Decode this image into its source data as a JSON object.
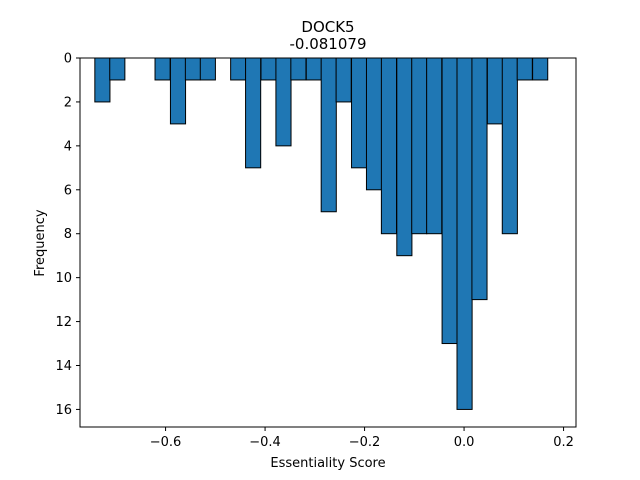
{
  "chart_data": {
    "type": "bar",
    "title": "DOCK5",
    "subtitle": "-0.081079",
    "xlabel": "Essentiality Score",
    "ylabel": "Frequency",
    "y_inverted": true,
    "xlim": [
      -0.772,
      0.225
    ],
    "ylim": [
      0,
      16.8
    ],
    "bin_width": 0.0304,
    "bins": [
      {
        "x": -0.727,
        "count": 2
      },
      {
        "x": -0.697,
        "count": 1
      },
      {
        "x": -0.606,
        "count": 1
      },
      {
        "x": -0.575,
        "count": 3
      },
      {
        "x": -0.545,
        "count": 1
      },
      {
        "x": -0.515,
        "count": 1
      },
      {
        "x": -0.454,
        "count": 1
      },
      {
        "x": -0.424,
        "count": 5
      },
      {
        "x": -0.393,
        "count": 1
      },
      {
        "x": -0.363,
        "count": 4
      },
      {
        "x": -0.333,
        "count": 1
      },
      {
        "x": -0.302,
        "count": 1
      },
      {
        "x": -0.272,
        "count": 7
      },
      {
        "x": -0.242,
        "count": 2
      },
      {
        "x": -0.211,
        "count": 5
      },
      {
        "x": -0.181,
        "count": 6
      },
      {
        "x": -0.151,
        "count": 8
      },
      {
        "x": -0.12,
        "count": 9
      },
      {
        "x": -0.09,
        "count": 8
      },
      {
        "x": -0.06,
        "count": 8
      },
      {
        "x": -0.029,
        "count": 13
      },
      {
        "x": 0.001,
        "count": 16
      },
      {
        "x": 0.031,
        "count": 11
      },
      {
        "x": 0.062,
        "count": 3
      },
      {
        "x": 0.092,
        "count": 8
      },
      {
        "x": 0.122,
        "count": 1
      },
      {
        "x": 0.153,
        "count": 1
      }
    ],
    "x_ticks": [
      {
        "value": -0.6,
        "label": "−0.6"
      },
      {
        "value": -0.4,
        "label": "−0.4"
      },
      {
        "value": -0.2,
        "label": "−0.2"
      },
      {
        "value": 0.0,
        "label": "0.0"
      },
      {
        "value": 0.2,
        "label": "0.2"
      }
    ],
    "y_ticks": [
      {
        "value": 0,
        "label": "0"
      },
      {
        "value": 2,
        "label": "2"
      },
      {
        "value": 4,
        "label": "4"
      },
      {
        "value": 6,
        "label": "6"
      },
      {
        "value": 8,
        "label": "8"
      },
      {
        "value": 10,
        "label": "10"
      },
      {
        "value": 12,
        "label": "12"
      },
      {
        "value": 14,
        "label": "14"
      },
      {
        "value": 16,
        "label": "16"
      }
    ],
    "colors": {
      "bar_fill": "#1f77b4",
      "bar_edge": "#000000"
    },
    "grid": false
  }
}
